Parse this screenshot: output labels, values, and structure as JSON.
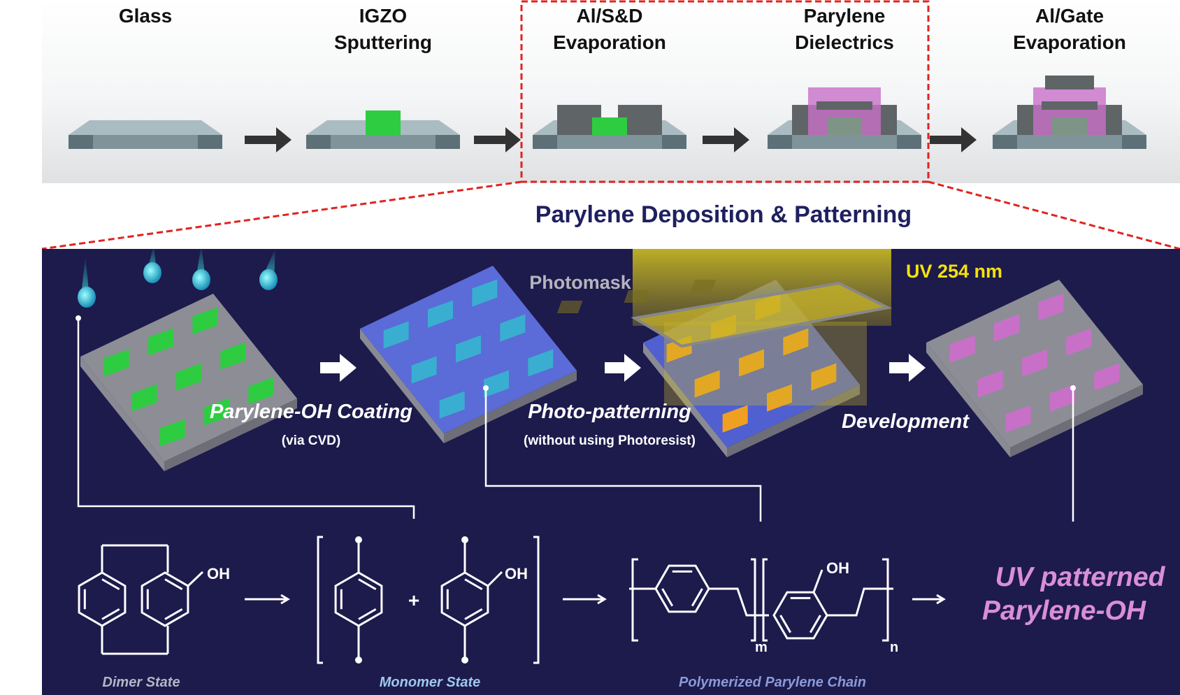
{
  "process_steps": [
    "Glass",
    "IGZO\nSputtering",
    "Al/S&D\nEvaporation",
    "Parylene\nDielectrics",
    "Al/Gate\nEvaporation"
  ],
  "steps": {
    "s1": "Glass",
    "s2a": "IGZO",
    "s2b": "Sputtering",
    "s3a": "Al/S&D",
    "s3b": "Evaporation",
    "s4a": "Parylene",
    "s4b": "Dielectrics",
    "s5a": "Al/Gate",
    "s5b": "Evaporation"
  },
  "section_title": "Parylene Deposition & Patterning",
  "panel": {
    "photomask": "Photomask",
    "uv": "UV 254 nm",
    "coating": "Parylene-OH Coating",
    "coating_sub": "(via CVD)",
    "patterning": "Photo-patterning",
    "patterning_sub": "(without using Photoresist)",
    "development": "Development"
  },
  "chemistry": {
    "oh": "OH",
    "plus": "+",
    "m": "m",
    "n": "n",
    "dimer": "Dimer State",
    "monomer": "Monomer State",
    "polymer": "Polymerized Parylene Chain",
    "result_1": "UV patterned",
    "result_2": "Parylene-OH"
  },
  "colors": {
    "panel_bg": "#1d1a4c",
    "highlight_box": "#e0231f",
    "title": "#1f2060",
    "uv": "#f4e20a",
    "result": "#d98fd4",
    "igzo": "#2ecc40",
    "parylene": "#c870c8"
  }
}
